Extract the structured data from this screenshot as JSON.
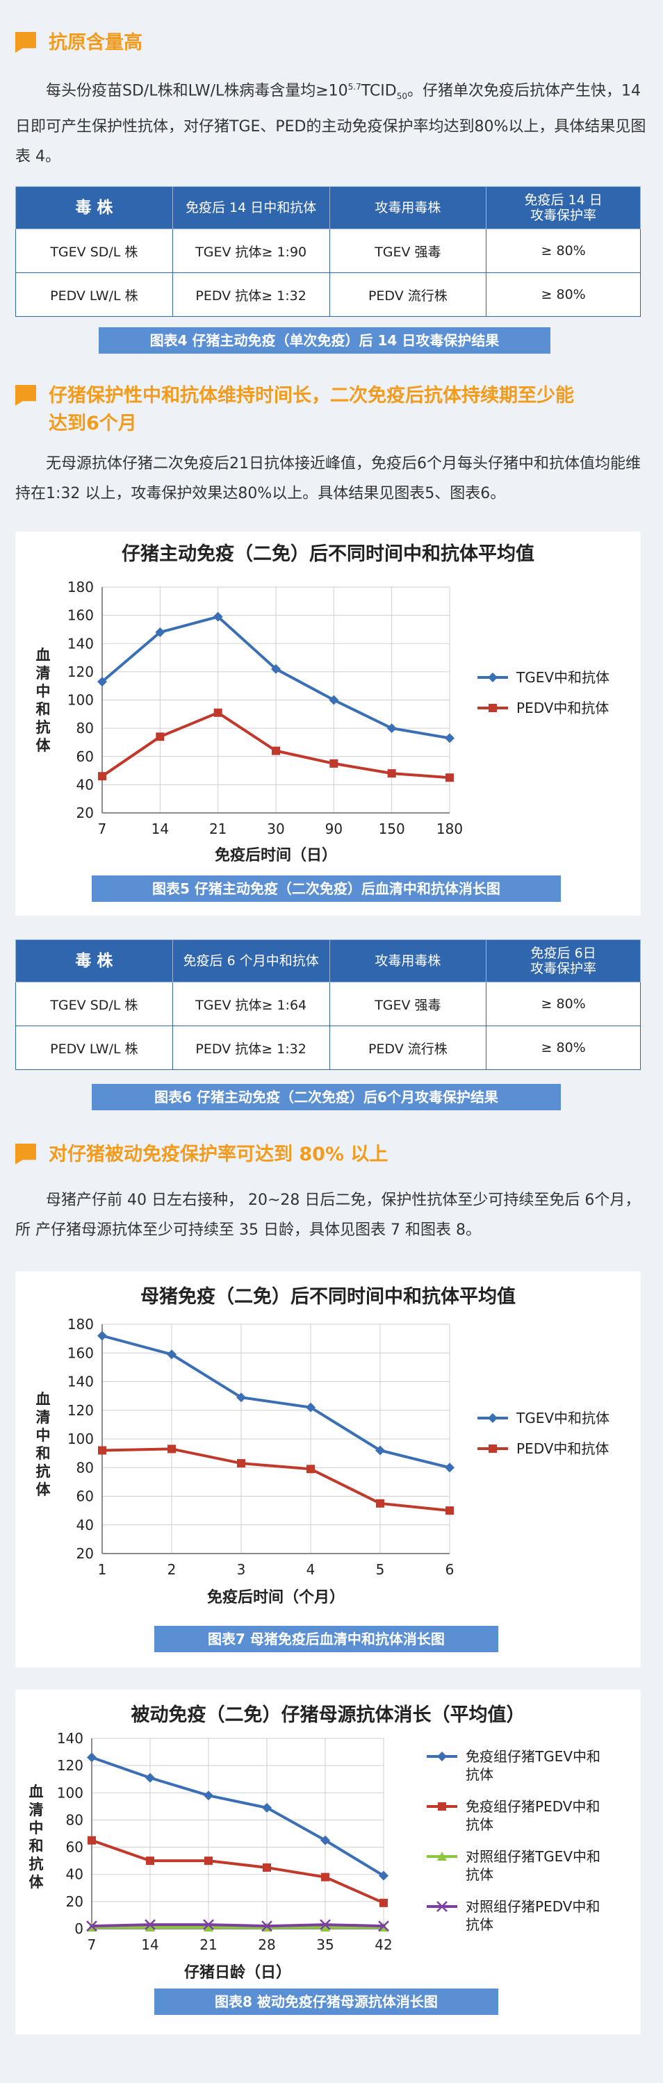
{
  "s1": {
    "title": "抗原含量高",
    "para_a": "每头份疫苗SD/L株和LW/L株病毒含量均≥10",
    "para_sup": "5.7",
    "para_b": "TCID",
    "para_sub": "50",
    "para_c": "。仔猪单次免疫后抗体产生快，14日即可产生保护性抗体，对仔猪TGE、PED的主动免疫保护率均达到80%以上，具体结果见图表 4。",
    "table": {
      "headers": [
        "毒 株",
        "免疫后 14 日中和抗体",
        "攻毒用毒株",
        "免疫后 14 日\n攻毒保护率"
      ],
      "rows": [
        [
          "TGEV SD/L 株",
          "TGEV 抗体≥ 1:90",
          "TGEV 强毒",
          "≥ 80%"
        ],
        [
          "PEDV LW/L 株",
          "PEDV 抗体≥ 1:32",
          "PEDV 流行株",
          "≥ 80%"
        ]
      ]
    },
    "caption": "图表4  仔猪主动免疫（单次免疫）后 14 日攻毒保护结果"
  },
  "s2": {
    "title_line1": "仔猪保护性中和抗体维持时间长，二次免疫后抗体持续期至少能",
    "title_line2": "达到6个月",
    "para": "无母源抗体仔猪二次免疫后21日抗体接近峰值，免疫后6个月每头仔猪中和抗体值均能维持在1:32 以上，攻毒保护效果达80%以上。具体结果见图表5、图表6。",
    "caption5": "图表5  仔猪主动免疫（二次免疫）后血清中和抗体消长图",
    "table": {
      "headers": [
        "毒 株",
        "免疫后 6 个月中和抗体",
        "攻毒用毒株",
        "免疫后 6日\n攻毒保护率"
      ],
      "rows": [
        [
          "TGEV SD/L 株",
          "TGEV 抗体≥ 1:64",
          "TGEV 强毒",
          "≥ 80%"
        ],
        [
          "PEDV LW/L 株",
          "PEDV 抗体≥ 1:32",
          "PEDV 流行株",
          "≥ 80%"
        ]
      ]
    },
    "caption6": "图表6  仔猪主动免疫（二次免疫）后6个月攻毒保护结果"
  },
  "s3": {
    "title": "对仔猪被动免疫保护率可达到 80% 以上",
    "para": "母猪产仔前 40 日左右接种， 20~28 日后二免，保护性抗体至少可持续至免后 6个月，所 产仔猪母源抗体至少可持续至 35 日龄，具体见图表 7 和图表 8。",
    "caption7": "图表7  母猪免疫后血清中和抗体消长图",
    "caption8": "图表8  被动免疫仔猪母源抗体消长图"
  },
  "chart_data": [
    {
      "type": "line",
      "title": "仔猪主动免疫（二免）后不同时间中和抗体平均值",
      "xlabel": "免疫后时间（日）",
      "ylabel": "血清中和抗体",
      "categories": [
        "7",
        "14",
        "21",
        "30",
        "90",
        "150",
        "180"
      ],
      "ylim": [
        20,
        180
      ],
      "yticks": [
        20,
        40,
        60,
        80,
        100,
        120,
        140,
        160,
        180
      ],
      "legend": "right",
      "series": [
        {
          "name": "TGEV中和抗体",
          "color": "#3a6fb5",
          "marker": "diamond",
          "values": [
            113,
            148,
            159,
            122,
            100,
            80,
            73
          ]
        },
        {
          "name": "PEDV中和抗体",
          "color": "#c0392b",
          "marker": "square",
          "values": [
            46,
            74,
            91,
            64,
            55,
            48,
            45
          ]
        }
      ]
    },
    {
      "type": "line",
      "title": "母猪免疫（二免）后不同时间中和抗体平均值",
      "xlabel": "免疫后时间（个月）",
      "ylabel": "血清中和抗体",
      "categories": [
        "1",
        "2",
        "3",
        "4",
        "5",
        "6"
      ],
      "ylim": [
        20,
        180
      ],
      "yticks": [
        20,
        40,
        60,
        80,
        100,
        120,
        140,
        160,
        180
      ],
      "legend": "right",
      "series": [
        {
          "name": "TGEV中和抗体",
          "color": "#3a6fb5",
          "marker": "diamond",
          "values": [
            172,
            159,
            129,
            122,
            92,
            80
          ]
        },
        {
          "name": "PEDV中和抗体",
          "color": "#c0392b",
          "marker": "square",
          "values": [
            92,
            93,
            83,
            79,
            55,
            50
          ]
        }
      ]
    },
    {
      "type": "line",
      "title": "被动免疫（二免）仔猪母源抗体消长（平均值）",
      "xlabel": "仔猪日龄（日）",
      "ylabel": "血清中和抗体",
      "categories": [
        "7",
        "14",
        "21",
        "28",
        "35",
        "42"
      ],
      "ylim": [
        0,
        140
      ],
      "yticks": [
        0,
        20,
        40,
        60,
        80,
        100,
        120,
        140
      ],
      "legend": "right",
      "series": [
        {
          "name": "免疫组仔猪TGEV中和抗体",
          "color": "#3a6fb5",
          "marker": "diamond",
          "values": [
            126,
            111,
            98,
            89,
            65,
            39
          ]
        },
        {
          "name": "免疫组仔猪PEDV中和抗体",
          "color": "#c0392b",
          "marker": "square",
          "values": [
            65,
            50,
            50,
            45,
            38,
            19
          ]
        },
        {
          "name": "对照组仔猪TGEV中和抗体",
          "color": "#8dc63f",
          "marker": "triangle",
          "values": [
            1,
            1,
            1,
            1,
            1,
            1
          ]
        },
        {
          "name": "对照组仔猪PEDV中和抗体",
          "color": "#7b3fa0",
          "marker": "x",
          "values": [
            2,
            3,
            3,
            2,
            3,
            2
          ]
        }
      ]
    }
  ]
}
